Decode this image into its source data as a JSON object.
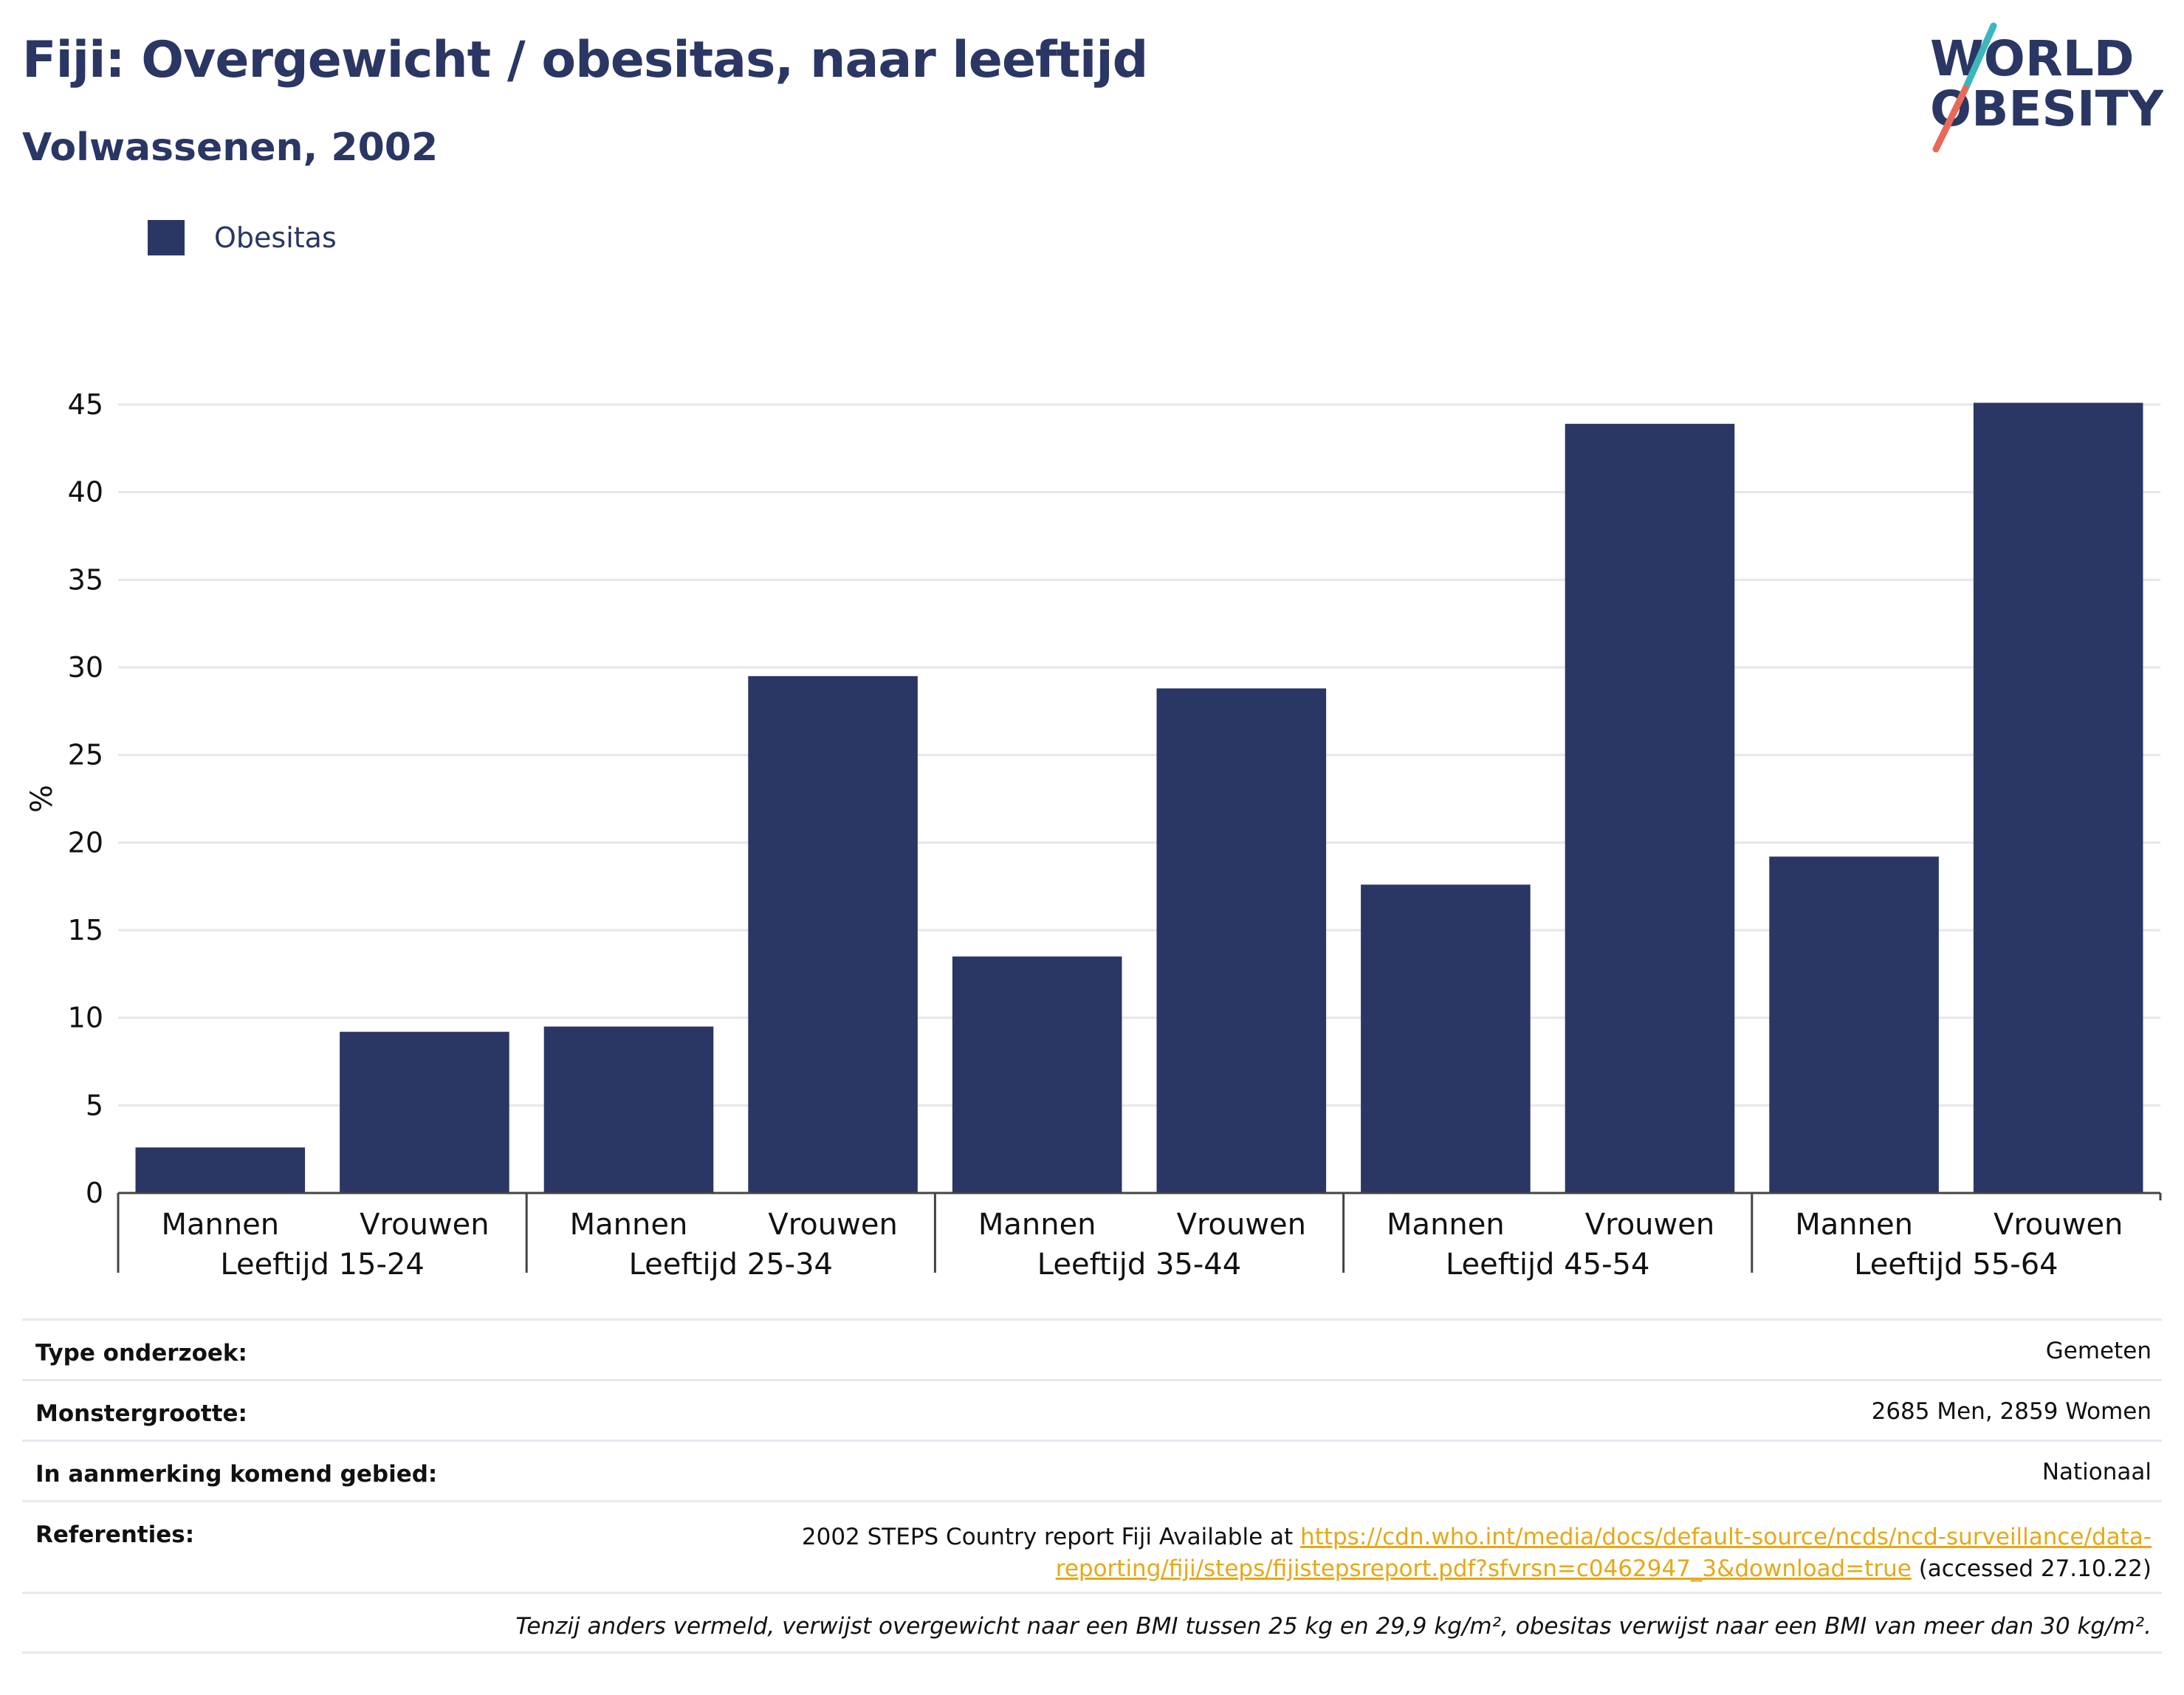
{
  "header": {
    "title": "Fiji: Overgewicht / obesitas, naar leeftijd",
    "subtitle": "Volwassenen, 2002"
  },
  "logo": {
    "line1": "WORLD",
    "line2": "OBESITY",
    "colors": {
      "text": "#2a3663",
      "slash_top": "#3bb6bd",
      "slash_bottom": "#e8695a"
    }
  },
  "legend": {
    "label": "Obesitas",
    "color": "#2a3663"
  },
  "chart_data": {
    "type": "bar",
    "title": "",
    "ylabel": "%",
    "xlabel": "",
    "ylim": [
      0,
      45
    ],
    "yticks": [
      0,
      5,
      10,
      15,
      20,
      25,
      30,
      35,
      40,
      45
    ],
    "grid": true,
    "legend_position": "top-left",
    "bar_color": "#2a3663",
    "groups": [
      {
        "label": "Leeftijd 15-24",
        "categories": [
          "Mannen",
          "Vrouwen"
        ],
        "values": [
          2.6,
          9.2
        ]
      },
      {
        "label": "Leeftijd 25-34",
        "categories": [
          "Mannen",
          "Vrouwen"
        ],
        "values": [
          9.5,
          29.5
        ]
      },
      {
        "label": "Leeftijd 35-44",
        "categories": [
          "Mannen",
          "Vrouwen"
        ],
        "values": [
          13.5,
          28.8
        ]
      },
      {
        "label": "Leeftijd 45-54",
        "categories": [
          "Mannen",
          "Vrouwen"
        ],
        "values": [
          17.6,
          43.9
        ]
      },
      {
        "label": "Leeftijd 55-64",
        "categories": [
          "Mannen",
          "Vrouwen"
        ],
        "values": [
          19.2,
          45.1
        ]
      }
    ],
    "series": [
      {
        "name": "Obesitas"
      }
    ]
  },
  "info": {
    "survey_type_label": "Type onderzoek:",
    "survey_type_value": "Gemeten",
    "sample_size_label": "Monstergrootte:",
    "sample_size_value": "2685 Men, 2859 Women",
    "area_label": "In aanmerking komend gebied:",
    "area_value": "Nationaal",
    "references_label": "Referenties:",
    "references_prefix": "2002 STEPS Country report Fiji Available at",
    "references_link_part1": "https://cdn.who.int/media/docs/default-source/ncds/ncd-surveillance/data-",
    "references_link_part2": "reporting/fiji/steps/fijistepsreport.pdf?sfvrsn=c0462947_3&download=true",
    "references_suffix": "(accessed 27.10.22)",
    "link_color": "#e6a817",
    "note": "Tenzij anders vermeld, verwijst overgewicht naar een BMI tussen 25 kg en 29,9 kg/m², obesitas verwijst naar een BMI van meer dan 30 kg/m²."
  }
}
